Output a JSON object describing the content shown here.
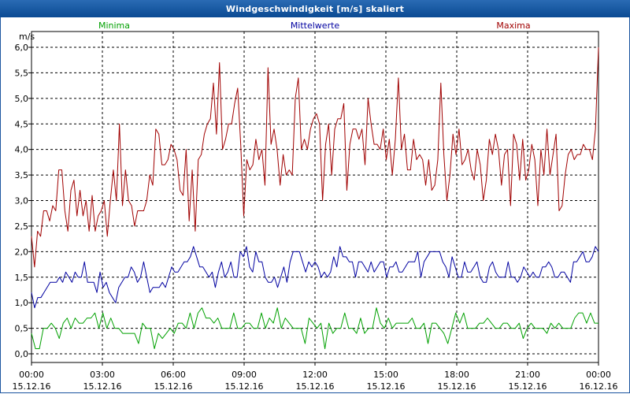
{
  "window": {
    "title": "Windgeschwindigkeit [m/s] skaliert"
  },
  "colors": {
    "title_bar": "#1b5ea8",
    "minima": "#00a000",
    "mittelwerte": "#0000a0",
    "maxima": "#a00000",
    "grid": "#000000"
  },
  "chart_data": {
    "type": "line",
    "title": "Windgeschwindigkeit [m/s] skaliert",
    "ylabel": "m/s",
    "xlabel": "",
    "ylim": [
      0.0,
      6.0
    ],
    "xlim": [
      0,
      24
    ],
    "y_ticks": [
      "0,0",
      "0,5",
      "1,0",
      "1,5",
      "2,0",
      "2,5",
      "3,0",
      "3,5",
      "4,0",
      "4,5",
      "5,0",
      "5,5",
      "6,0"
    ],
    "x_ticks": [
      {
        "time": "00:00",
        "date": "15.12.16"
      },
      {
        "time": "03:00",
        "date": "15.12.16"
      },
      {
        "time": "06:00",
        "date": "15.12.16"
      },
      {
        "time": "09:00",
        "date": "15.12.16"
      },
      {
        "time": "12:00",
        "date": "15.12.16"
      },
      {
        "time": "15:00",
        "date": "15.12.16"
      },
      {
        "time": "18:00",
        "date": "15.12.16"
      },
      {
        "time": "21:00",
        "date": "15.12.16"
      },
      {
        "time": "00:00",
        "date": "16.12.16"
      }
    ],
    "grid": true,
    "legend_placement": "top",
    "series": [
      {
        "name": "Minima",
        "color": "#00a000",
        "values": [
          0.4,
          0.1,
          0.1,
          0.5,
          0.5,
          0.6,
          0.5,
          0.3,
          0.6,
          0.7,
          0.5,
          0.7,
          0.6,
          0.6,
          0.7,
          0.7,
          0.8,
          0.5,
          0.8,
          0.5,
          0.7,
          0.5,
          0.5,
          0.4,
          0.4,
          0.4,
          0.4,
          0.2,
          0.6,
          0.5,
          0.5,
          0.1,
          0.4,
          0.3,
          0.4,
          0.5,
          0.4,
          0.6,
          0.6,
          0.5,
          0.8,
          0.5,
          0.8,
          0.9,
          0.7,
          0.7,
          0.6,
          0.7,
          0.5,
          0.5,
          0.5,
          0.8,
          0.5,
          0.5,
          0.6,
          0.6,
          0.5,
          0.5,
          0.8,
          0.5,
          0.7,
          0.6,
          0.9,
          0.5,
          0.7,
          0.6,
          0.5,
          0.5,
          0.5,
          0.2,
          0.7,
          0.6,
          0.5,
          0.6,
          0.1,
          0.6,
          0.4,
          0.5,
          0.5,
          0.8,
          0.5,
          0.5,
          0.4,
          0.7,
          0.4,
          0.5,
          0.5,
          0.9,
          0.6,
          0.5,
          0.7,
          0.5,
          0.6,
          0.6,
          0.6,
          0.6,
          0.7,
          0.5,
          0.5,
          0.6,
          0.2,
          0.6,
          0.6,
          0.5,
          0.4,
          0.2,
          0.5,
          0.8,
          0.6,
          0.8,
          0.5,
          0.5,
          0.5,
          0.6,
          0.6,
          0.7,
          0.6,
          0.5,
          0.5,
          0.6,
          0.6,
          0.5,
          0.5,
          0.6,
          0.3,
          0.5,
          0.6,
          0.5,
          0.5,
          0.5,
          0.4,
          0.6,
          0.5,
          0.6,
          0.5,
          0.5,
          0.5,
          0.7,
          0.8,
          0.8,
          0.6,
          0.8,
          0.6,
          0.6
        ]
      },
      {
        "name": "Mittelwerte",
        "color": "#0000a0",
        "values": [
          1.2,
          0.9,
          1.1,
          1.1,
          1.2,
          1.3,
          1.4,
          1.4,
          1.4,
          1.5,
          1.4,
          1.6,
          1.5,
          1.4,
          1.6,
          1.5,
          1.5,
          1.8,
          1.4,
          1.4,
          1.4,
          1.2,
          1.6,
          1.3,
          1.4,
          1.2,
          1.1,
          1.0,
          1.3,
          1.4,
          1.5,
          1.5,
          1.7,
          1.6,
          1.4,
          1.5,
          1.8,
          1.5,
          1.2,
          1.3,
          1.3,
          1.3,
          1.4,
          1.3,
          1.5,
          1.7,
          1.6,
          1.6,
          1.7,
          1.8,
          1.8,
          1.9,
          2.1,
          1.9,
          1.7,
          1.7,
          1.6,
          1.5,
          1.6,
          1.3,
          1.6,
          1.8,
          1.5,
          1.6,
          1.8,
          1.5,
          1.5,
          2.0,
          1.9,
          2.1,
          1.7,
          1.6,
          2.0,
          1.8,
          1.8,
          1.5,
          1.4,
          1.4,
          1.5,
          1.3,
          1.5,
          1.7,
          1.4,
          1.8,
          2.0,
          2.0,
          2.0,
          1.8,
          1.6,
          1.8,
          1.7,
          1.8,
          1.7,
          1.5,
          1.6,
          1.5,
          1.6,
          1.9,
          1.7,
          2.1,
          1.9,
          1.9,
          1.8,
          1.8,
          1.5,
          1.8,
          1.8,
          1.7,
          1.6,
          1.8,
          1.6,
          1.7,
          1.8,
          1.8,
          1.5,
          1.7,
          1.7,
          1.8,
          1.6,
          1.6,
          1.7,
          1.8,
          1.8,
          1.8,
          2.0,
          1.5,
          1.8,
          1.9,
          2.0,
          2.0,
          2.0,
          2.0,
          1.8,
          1.7,
          1.5,
          1.9,
          1.7,
          1.5,
          1.5,
          1.8,
          1.6,
          1.6,
          1.7,
          1.8,
          1.5,
          1.4,
          1.4,
          1.7,
          1.8,
          1.6,
          1.5,
          1.5,
          1.5,
          1.8,
          1.5,
          1.5,
          1.4,
          1.5,
          1.7,
          1.6,
          1.5,
          1.6,
          1.5,
          1.5,
          1.7,
          1.7,
          1.8,
          1.7,
          1.5,
          1.5,
          1.6,
          1.6,
          1.5,
          1.4,
          1.8,
          1.8,
          1.9,
          2.0,
          1.8,
          1.8,
          1.9,
          2.1,
          2.0
        ]
      },
      {
        "name": "Maxima",
        "color": "#a00000",
        "values": [
          2.3,
          1.7,
          2.4,
          2.3,
          2.8,
          2.8,
          2.6,
          2.9,
          2.8,
          3.6,
          3.6,
          2.8,
          2.4,
          3.2,
          3.4,
          2.7,
          3.2,
          2.7,
          3.0,
          2.4,
          3.1,
          2.4,
          2.7,
          2.8,
          3.0,
          2.3,
          3.0,
          3.6,
          3.0,
          4.5,
          2.9,
          3.6,
          3.0,
          2.9,
          2.5,
          2.8,
          2.8,
          2.8,
          3.0,
          3.5,
          3.3,
          4.4,
          4.3,
          3.7,
          3.7,
          3.8,
          4.1,
          4.0,
          3.8,
          3.2,
          3.1,
          4.0,
          2.6,
          3.6,
          2.4,
          3.8,
          3.9,
          4.3,
          4.5,
          4.6,
          5.3,
          4.3,
          5.7,
          4.0,
          4.2,
          4.5,
          4.5,
          4.9,
          5.2,
          4.1,
          2.7,
          3.8,
          3.6,
          3.7,
          4.2,
          3.8,
          4.0,
          3.3,
          5.6,
          4.1,
          4.4,
          4.0,
          3.3,
          3.9,
          3.5,
          3.6,
          3.5,
          5.0,
          5.4,
          4.0,
          4.2,
          4.0,
          4.4,
          4.6,
          4.7,
          4.5,
          3.0,
          4.1,
          4.5,
          3.5,
          4.4,
          4.6,
          4.6,
          4.9,
          3.2,
          4.1,
          4.4,
          4.4,
          4.2,
          4.4,
          3.7,
          5.0,
          4.5,
          4.1,
          4.1,
          4.0,
          4.4,
          3.8,
          4.2,
          3.5,
          4.2,
          5.4,
          4.0,
          4.3,
          3.6,
          3.6,
          4.2,
          3.8,
          3.9,
          3.8,
          3.3,
          3.8,
          3.2,
          3.3,
          3.8,
          5.3,
          3.9,
          3.0,
          3.5,
          4.3,
          3.9,
          4.4,
          3.7,
          3.8,
          4.0,
          3.6,
          3.4,
          4.0,
          3.7,
          3.0,
          3.4,
          4.2,
          3.9,
          4.3,
          4.0,
          3.3,
          3.9,
          4.0,
          2.9,
          4.3,
          4.1,
          3.4,
          4.2,
          3.4,
          3.6,
          4.1,
          3.8,
          2.9,
          4.0,
          3.5,
          4.4,
          3.5,
          3.9,
          4.3,
          2.8,
          2.9,
          3.5,
          3.9,
          4.0,
          3.8,
          3.9,
          3.9,
          4.1,
          4.0,
          4.0,
          3.8,
          4.4,
          6.0
        ]
      }
    ]
  }
}
